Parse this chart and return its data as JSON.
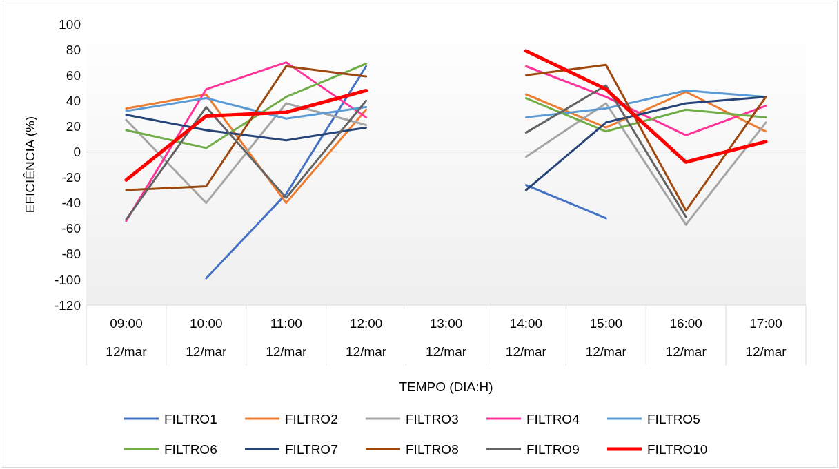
{
  "chart_data": {
    "type": "line",
    "xlabel": "TEMPO (DIA:H)",
    "ylabel": "EFICIÊNCIA (%)",
    "categories": [
      "09:00\n12/mar",
      "10:00\n12/mar",
      "11:00\n12/mar",
      "12:00\n12/mar",
      "13:00\n12/mar",
      "14:00\n12/mar",
      "15:00\n12/mar",
      "16:00\n12/mar",
      "17:00\n12/mar"
    ],
    "ylim": [
      -120,
      100
    ],
    "yticks": [
      -120,
      -100,
      -80,
      -60,
      -40,
      -20,
      0,
      20,
      40,
      60,
      80,
      100
    ],
    "legend": "bottom",
    "marker": "none",
    "line_style": "solid",
    "series": [
      {
        "name": "FILTRO1",
        "color": "#4472c4",
        "values": [
          null,
          -99,
          -33,
          67,
          null,
          -26,
          -52,
          null,
          null
        ]
      },
      {
        "name": "FILTRO2",
        "color": "#ed7d31",
        "values": [
          34,
          45,
          -40,
          33,
          null,
          45,
          19,
          47,
          16
        ]
      },
      {
        "name": "FILTRO3",
        "color": "#a5a5a5",
        "values": [
          25,
          -40,
          38,
          21,
          null,
          -4,
          38,
          -57,
          23
        ]
      },
      {
        "name": "FILTRO4",
        "color": "#ff3399",
        "values": [
          -54,
          49,
          70,
          27,
          null,
          67,
          43,
          13,
          36
        ]
      },
      {
        "name": "FILTRO5",
        "color": "#5b9bd5",
        "values": [
          32,
          42,
          26,
          35,
          null,
          27,
          34,
          48,
          43
        ]
      },
      {
        "name": "FILTRO6",
        "color": "#70ad47",
        "values": [
          17,
          3,
          43,
          69,
          null,
          42,
          16,
          33,
          27
        ]
      },
      {
        "name": "FILTRO7",
        "color": "#264478",
        "values": [
          29,
          17,
          9,
          19,
          null,
          -30,
          23,
          38,
          43
        ]
      },
      {
        "name": "FILTRO8",
        "color": "#9e480e",
        "values": [
          -30,
          -27,
          67,
          59,
          null,
          60,
          68,
          -46,
          43
        ]
      },
      {
        "name": "FILTRO9",
        "color": "#636363",
        "values": [
          -53,
          35,
          -36,
          40,
          null,
          15,
          52,
          -51,
          null
        ]
      },
      {
        "name": "FILTRO10",
        "color": "#ff0000",
        "values": [
          -22,
          28,
          31,
          48,
          null,
          79,
          49,
          -8,
          8
        ]
      }
    ]
  }
}
